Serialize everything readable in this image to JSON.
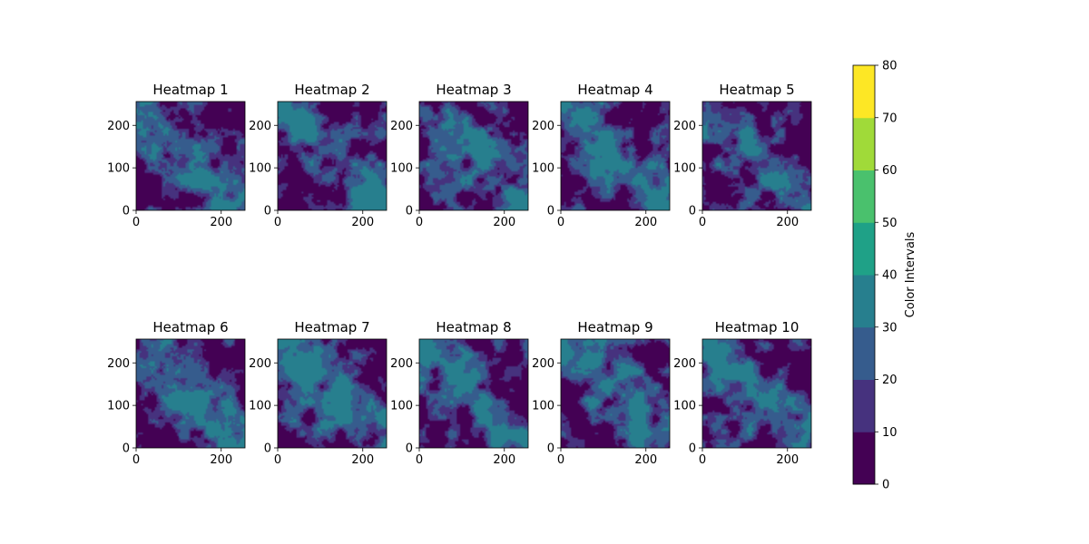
{
  "palette": [
    "#440154",
    "#46327e",
    "#365c8d",
    "#277f8e",
    "#1fa187",
    "#4ac16d",
    "#a0da39",
    "#fde725"
  ],
  "chart_data": {
    "type": "heatmap",
    "panels": [
      {
        "title": "Heatmap 1"
      },
      {
        "title": "Heatmap 2"
      },
      {
        "title": "Heatmap 3"
      },
      {
        "title": "Heatmap 4"
      },
      {
        "title": "Heatmap 5"
      },
      {
        "title": "Heatmap 6"
      },
      {
        "title": "Heatmap 7"
      },
      {
        "title": "Heatmap 8"
      },
      {
        "title": "Heatmap 9"
      },
      {
        "title": "Heatmap 10"
      }
    ],
    "xlim": [
      0,
      256
    ],
    "ylim": [
      0,
      256
    ],
    "xticks": [
      0,
      200
    ],
    "yticks": [
      0,
      100,
      200
    ],
    "colorbar": {
      "label": "Color Intervals",
      "levels": [
        0,
        10,
        20,
        30,
        40,
        50,
        60,
        70,
        80
      ]
    }
  }
}
